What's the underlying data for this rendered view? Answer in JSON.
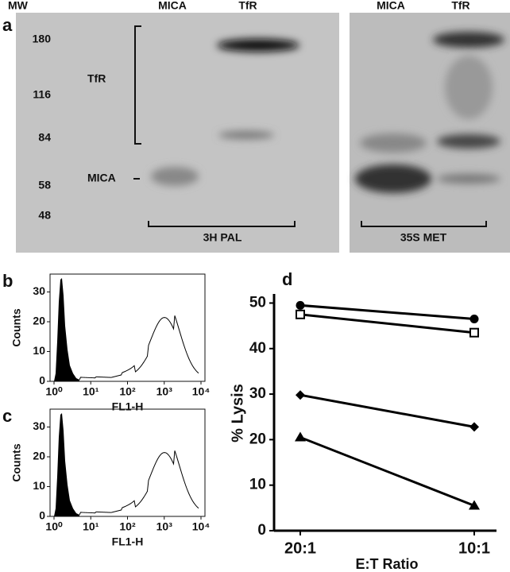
{
  "panel_a": {
    "letter": "a",
    "mw_header": "MW",
    "lanes": [
      "MICA",
      "TfR",
      "MICA",
      "TfR"
    ],
    "mw_markers": [
      "180",
      "116",
      "84",
      "58",
      "48"
    ],
    "bracket_tfr": "TfR",
    "bracket_mica": "MICA",
    "gel_left": "3H PAL",
    "gel_right": "35S MET"
  },
  "panel_b": {
    "letter": "b",
    "type": "histogram",
    "ylabel": "Counts",
    "xlabel": "FL1-H",
    "xscale": "log",
    "xlim": [
      1,
      10000
    ],
    "ylim": [
      0,
      36
    ],
    "xticks": [
      {
        "value": 1,
        "label": "10⁰"
      },
      {
        "value": 10,
        "label": "10¹"
      },
      {
        "value": 100,
        "label": "10²"
      },
      {
        "value": 1000,
        "label": "10³"
      },
      {
        "value": 10000,
        "label": "10⁴"
      }
    ],
    "yticks": [
      0,
      10,
      20,
      30
    ]
  },
  "panel_c": {
    "letter": "c",
    "type": "histogram",
    "ylabel": "Counts",
    "xlabel": "FL1-H",
    "xscale": "log",
    "xlim": [
      1,
      10000
    ],
    "ylim": [
      0,
      36
    ],
    "xticks": [
      {
        "value": 1,
        "label": "10⁰"
      },
      {
        "value": 10,
        "label": "10¹"
      },
      {
        "value": 100,
        "label": "10²"
      },
      {
        "value": 1000,
        "label": "10³"
      },
      {
        "value": 10000,
        "label": "10⁴"
      }
    ],
    "yticks": [
      0,
      10,
      20,
      30
    ]
  },
  "chart_data": {
    "type": "line",
    "letter": "d",
    "xlabel": "E:T Ratio",
    "ylabel": "% Lysis",
    "categories": [
      "20:1",
      "10:1"
    ],
    "ylim": [
      0,
      52
    ],
    "yticks": [
      0,
      10,
      20,
      30,
      40,
      50
    ],
    "series": [
      {
        "marker": "circle",
        "color": "#000000",
        "values": [
          49.5,
          46.5
        ]
      },
      {
        "marker": "open-square",
        "color": "#000000",
        "values": [
          47.5,
          43.5
        ]
      },
      {
        "marker": "diamond",
        "color": "#000000",
        "values": [
          29.8,
          22.8
        ]
      },
      {
        "marker": "triangle",
        "color": "#000000",
        "values": [
          20.5,
          5.5
        ]
      }
    ]
  }
}
